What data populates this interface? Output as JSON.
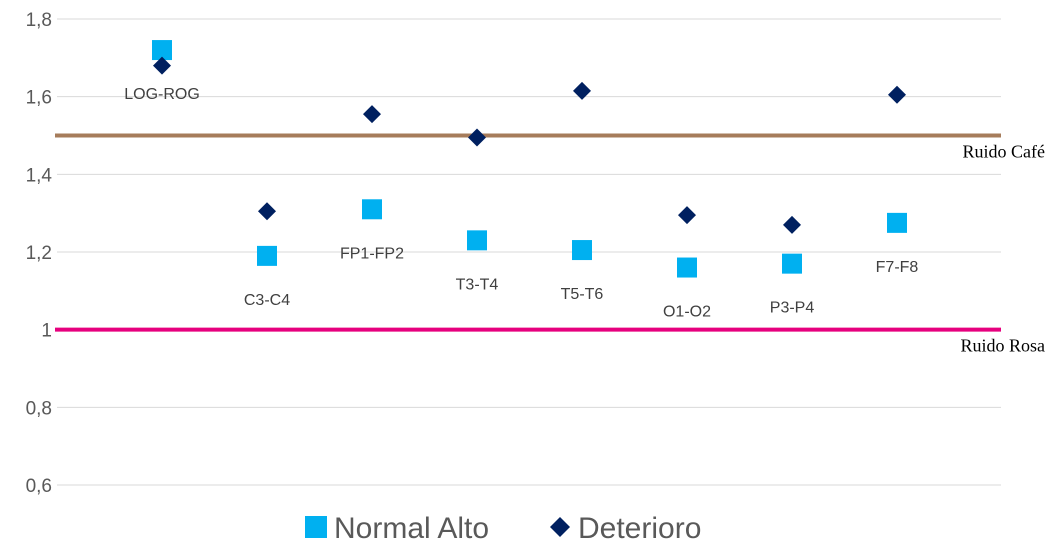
{
  "chart_data": {
    "type": "scatter",
    "categories": [
      "LOG-ROG",
      "C3-C4",
      "FP1-FP2",
      "T3-T4",
      "T5-T6",
      "O1-O2",
      "P3-P4",
      "F7-F8"
    ],
    "series": [
      {
        "name": "Normal Alto",
        "marker": "square",
        "color": "#00B0F0",
        "values": [
          1.72,
          1.19,
          1.31,
          1.23,
          1.205,
          1.16,
          1.17,
          1.275
        ]
      },
      {
        "name": "Deterioro",
        "marker": "diamond",
        "color": "#002060",
        "values": [
          1.68,
          1.305,
          1.555,
          1.495,
          1.615,
          1.295,
          1.27,
          1.605
        ]
      }
    ],
    "point_labels": [
      {
        "text": "LOG-ROG",
        "value": 1.72
      },
      {
        "text": "C3-C4",
        "value": 1.19
      },
      {
        "text": "FP1-FP2",
        "value": 1.31
      },
      {
        "text": "T3-T4",
        "value": 1.23
      },
      {
        "text": "T5-T6",
        "value": 1.205
      },
      {
        "text": "O1-O2",
        "value": 1.16
      },
      {
        "text": "P3-P4",
        "value": 1.17
      },
      {
        "text": "F7-F8",
        "value": 1.275
      }
    ],
    "reference_lines": [
      {
        "label": "Ruido Café",
        "value": 1.5,
        "color": "#A67C5B"
      },
      {
        "label": "Ruido Rosa",
        "value": 1.0,
        "color": "#E6007E"
      }
    ],
    "y_ticks": [
      "0,6",
      "0,8",
      "1",
      "1,2",
      "1,4",
      "1,6",
      "1,8"
    ],
    "y_tick_values": [
      0.6,
      0.8,
      1.0,
      1.2,
      1.4,
      1.6,
      1.8
    ],
    "ylim": [
      0.6,
      1.8
    ],
    "grid": true,
    "legend_position": "bottom",
    "title": "",
    "xlabel": "",
    "ylabel": ""
  }
}
